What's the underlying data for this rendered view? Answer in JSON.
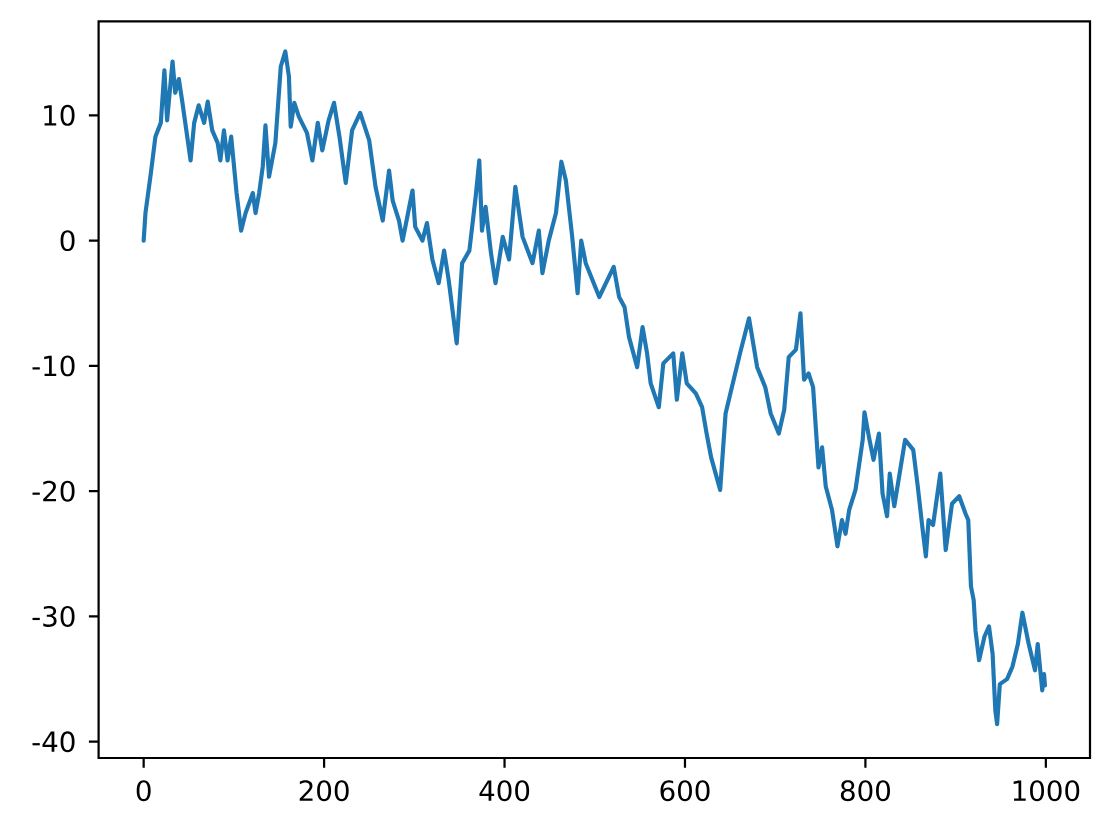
{
  "chart_data": {
    "type": "line",
    "x": [
      0,
      2,
      8,
      13,
      19,
      23,
      26,
      32,
      35,
      39,
      43,
      52,
      56,
      61,
      67,
      71,
      76,
      82,
      85,
      89,
      93,
      97,
      103,
      108,
      113,
      121,
      124,
      128,
      132,
      135,
      139,
      146,
      152,
      157,
      161,
      163,
      167,
      172,
      181,
      187,
      193,
      198,
      205,
      211,
      217,
      224,
      231,
      240,
      250,
      257,
      265,
      272,
      276,
      283,
      287,
      298,
      301,
      309,
      314,
      320,
      327,
      333,
      338,
      347,
      353,
      361,
      368,
      372,
      375,
      379,
      385,
      390,
      398,
      405,
      412,
      420,
      431,
      438,
      442,
      449,
      457,
      463,
      468,
      475,
      481,
      485,
      490,
      505,
      521,
      527,
      533,
      538,
      547,
      553,
      558,
      562,
      571,
      576,
      587,
      591,
      597,
      602,
      612,
      619,
      624,
      629,
      639,
      645,
      661,
      671,
      680,
      689,
      695,
      704,
      710,
      715,
      723,
      728,
      732,
      737,
      742,
      748,
      752,
      756,
      763,
      769,
      774,
      778,
      782,
      789,
      797,
      799,
      804,
      809,
      815,
      819,
      824,
      827,
      832,
      844,
      853,
      858,
      863,
      867,
      870,
      875,
      883,
      889,
      896,
      904,
      911,
      914,
      917,
      920,
      922,
      926,
      932,
      937,
      941,
      944,
      946,
      949,
      957,
      963,
      969,
      974,
      981,
      988,
      991,
      996,
      998,
      999
    ],
    "series": [
      {
        "color": "#1f77b4",
        "values": [
          0,
          2.2,
          5.4,
          8.3,
          9.4,
          13.6,
          9.6,
          14.3,
          11.8,
          12.9,
          11,
          6.4,
          9.4,
          10.8,
          9.4,
          11.1,
          8.8,
          7.8,
          6.4,
          8.8,
          6.4,
          8.3,
          3.8,
          0.8,
          2.2,
          3.8,
          2.2,
          3.8,
          5.9,
          9.2,
          5.1,
          7.8,
          13.9,
          15.1,
          13.1,
          9.1,
          11,
          9.9,
          8.6,
          6.4,
          9.4,
          7.2,
          9.6,
          11,
          8.3,
          4.6,
          8.8,
          10.2,
          8,
          4.3,
          1.6,
          5.6,
          3.2,
          1.6,
          0,
          4,
          1.1,
          0,
          1.4,
          -1.5,
          -3.4,
          -0.8,
          -3.1,
          -8.2,
          -1.8,
          -0.8,
          3.5,
          6.4,
          0.8,
          2.7,
          -1,
          -3.4,
          0.3,
          -1.5,
          4.3,
          0.3,
          -1.8,
          0.8,
          -2.6,
          0,
          2.2,
          6.3,
          4.8,
          0.3,
          -4.2,
          0,
          -1.8,
          -4.5,
          -2.1,
          -4.5,
          -5.3,
          -7.7,
          -10.1,
          -6.9,
          -9,
          -11.4,
          -13.3,
          -9.8,
          -9,
          -12.7,
          -9,
          -11.4,
          -12.2,
          -13.3,
          -15.4,
          -17.3,
          -19.9,
          -13.8,
          -9,
          -6.2,
          -10.1,
          -11.7,
          -13.8,
          -15.4,
          -13.5,
          -9.3,
          -8.7,
          -5.8,
          -11.1,
          -10.6,
          -11.7,
          -18.1,
          -16.5,
          -19.6,
          -21.5,
          -24.4,
          -22.3,
          -23.4,
          -21.5,
          -19.9,
          -15.9,
          -13.7,
          -15.7,
          -17.5,
          -15.4,
          -20.2,
          -22,
          -18.6,
          -21.2,
          -15.9,
          -16.7,
          -19.6,
          -22.8,
          -25.2,
          -22.3,
          -22.7,
          -18.6,
          -24.7,
          -21,
          -20.4,
          -21.8,
          -22.3,
          -27.6,
          -28.7,
          -31.1,
          -33.5,
          -31.6,
          -30.8,
          -33,
          -37.5,
          -38.6,
          -35.4,
          -35,
          -34,
          -32.2,
          -29.7,
          -32.2,
          -34.3,
          -32.2,
          -35.9,
          -34.6,
          -35.5
        ]
      }
    ],
    "xlim": [
      -49.95,
      1048.95
    ],
    "ylim": [
      -41.3,
      17.5
    ],
    "xticks": [
      0,
      200,
      400,
      600,
      800,
      1000
    ],
    "yticks": [
      -40,
      -30,
      -20,
      -10,
      0,
      10
    ]
  }
}
